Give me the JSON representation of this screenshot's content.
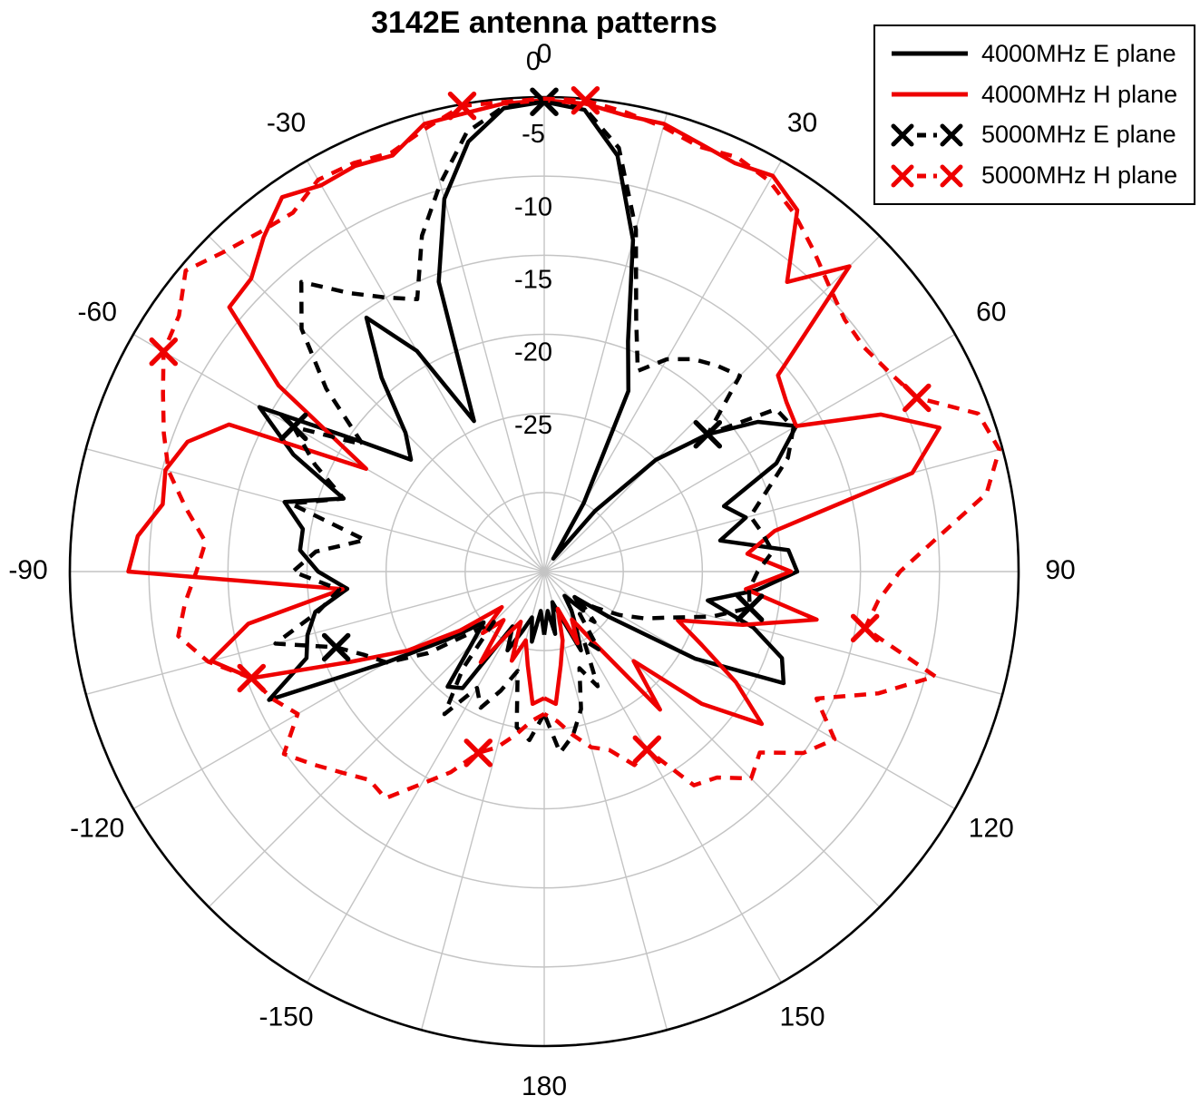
{
  "title": "3142E antenna patterns",
  "chart_data": {
    "type": "line",
    "subtype": "polar",
    "angle_unit": "degrees",
    "zero_location": "top",
    "direction": "clockwise",
    "angle_tick_labels": [
      0,
      30,
      60,
      90,
      120,
      150,
      180,
      -150,
      -120,
      -90,
      -60,
      -30
    ],
    "angle_grid_step_deg": 15,
    "radial_axis": {
      "min": -30,
      "max": 0,
      "ring_step": 5,
      "tick_labels": [
        "0",
        "-5",
        "-10",
        "-15",
        "-20",
        "-25"
      ],
      "grid": true
    },
    "legend_position": "top-right",
    "colors": {
      "grid": "#c4c4c4",
      "axis": "#000000",
      "black_series": "#000000",
      "red_series": "#ee0000"
    },
    "series": [
      {
        "name": "4000MHz E plane",
        "color": "#000000",
        "style": "solid",
        "marker": "none",
        "points": [
          [
            -180,
            -26
          ],
          [
            -175,
            -27.5
          ],
          [
            -170,
            -25.5
          ],
          [
            -165,
            -27
          ],
          [
            -160,
            -26
          ],
          [
            -155,
            -24.5
          ],
          [
            -150,
            -26
          ],
          [
            -145,
            -21
          ],
          [
            -140,
            -20.5
          ],
          [
            -135,
            -23.5
          ],
          [
            -130,
            -25
          ],
          [
            -125,
            -22.5
          ],
          [
            -120,
            -18.6
          ],
          [
            -115,
            -10.8
          ],
          [
            -110,
            -14
          ],
          [
            -105,
            -14.5
          ],
          [
            -100,
            -15.3
          ],
          [
            -95,
            -17.5
          ],
          [
            -90,
            -15.7
          ],
          [
            -85,
            -14.5
          ],
          [
            -80,
            -14.5
          ],
          [
            -75,
            -13
          ],
          [
            -70,
            -16.5
          ],
          [
            -65,
            -12.5
          ],
          [
            -60,
            -9.2
          ],
          [
            -55,
            -15.5
          ],
          [
            -50,
            -19
          ],
          [
            -45,
            -17.6
          ],
          [
            -40,
            -14
          ],
          [
            -35,
            -10.4
          ],
          [
            -30,
            -13.9
          ],
          [
            -25,
            -19.5
          ],
          [
            -20,
            -10.5
          ],
          [
            -15,
            -5.6
          ],
          [
            -10,
            -2.4
          ],
          [
            -5,
            -0.6
          ],
          [
            0,
            -0.3
          ],
          [
            5,
            -0.7
          ],
          [
            10,
            -3.3
          ],
          [
            15,
            -8.3
          ],
          [
            20,
            -14.5
          ],
          [
            25,
            -17.4
          ],
          [
            30,
            -25
          ],
          [
            35,
            -29
          ],
          [
            40,
            -25
          ],
          [
            45,
            -20
          ],
          [
            50,
            -16.5
          ],
          [
            55,
            -13.5
          ],
          [
            60,
            -11.6
          ],
          [
            65,
            -13.8
          ],
          [
            70,
            -17.9
          ],
          [
            75,
            -16.8
          ],
          [
            80,
            -18.7
          ],
          [
            85,
            -14.5
          ],
          [
            90,
            -14
          ],
          [
            95,
            -16.5
          ],
          [
            100,
            -19.5
          ],
          [
            105,
            -16.3
          ],
          [
            110,
            -14
          ],
          [
            115,
            -13.3
          ],
          [
            120,
            -19
          ],
          [
            125,
            -25
          ],
          [
            130,
            -27.5
          ],
          [
            135,
            -26.5
          ],
          [
            140,
            -28
          ],
          [
            145,
            -27
          ],
          [
            150,
            -26
          ],
          [
            155,
            -24.5
          ],
          [
            160,
            -27
          ],
          [
            165,
            -28
          ],
          [
            170,
            -26
          ],
          [
            175,
            -27.5
          ],
          [
            180,
            -26
          ]
        ],
        "marker_points": []
      },
      {
        "name": "4000MHz H plane",
        "color": "#ee0000",
        "style": "solid",
        "marker": "none",
        "points": [
          [
            -180,
            -22
          ],
          [
            -175,
            -21.6
          ],
          [
            -170,
            -24
          ],
          [
            -165,
            -25.5
          ],
          [
            -160,
            -24
          ],
          [
            -155,
            -26.5
          ],
          [
            -150,
            -25.5
          ],
          [
            -145,
            -23
          ],
          [
            -140,
            -26
          ],
          [
            -135,
            -24.5
          ],
          [
            -130,
            -26.5
          ],
          [
            -125,
            -23.5
          ],
          [
            -120,
            -20
          ],
          [
            -115,
            -16.5
          ],
          [
            -110,
            -10.3
          ],
          [
            -105,
            -8.2
          ],
          [
            -100,
            -11
          ],
          [
            -95,
            -17.2
          ],
          [
            -90,
            -3.7
          ],
          [
            -85,
            -4.2
          ],
          [
            -80,
            -5.5
          ],
          [
            -75,
            -5.2
          ],
          [
            -70,
            -6
          ],
          [
            -65,
            -8
          ],
          [
            -60,
            -17
          ],
          [
            -55,
            -9.5
          ],
          [
            -50,
            -4
          ],
          [
            -45,
            -3.8
          ],
          [
            -40,
            -2.4
          ],
          [
            -35,
            -1.1
          ],
          [
            -30,
            -1.8
          ],
          [
            -25,
            -1.7
          ],
          [
            -20,
            -2
          ],
          [
            -15,
            -0.7
          ],
          [
            -10,
            -0.6
          ],
          [
            -5,
            -0.3
          ],
          [
            0,
            -0.2
          ],
          [
            5,
            -0.3
          ],
          [
            10,
            -0.7
          ],
          [
            15,
            -0.7
          ],
          [
            20,
            -1.2
          ],
          [
            25,
            -1.5
          ],
          [
            30,
            -1.1
          ],
          [
            35,
            -2.1
          ],
          [
            40,
            -6.1
          ],
          [
            45,
            -2.7
          ],
          [
            50,
            -10.7
          ],
          [
            55,
            -11.3
          ],
          [
            60,
            -11.6
          ],
          [
            65,
            -6.5
          ],
          [
            70,
            -3.4
          ],
          [
            75,
            -5.9
          ],
          [
            80,
            -15.2
          ],
          [
            85,
            -17.1
          ],
          [
            90,
            -14.4
          ],
          [
            95,
            -17.2
          ],
          [
            100,
            -12.5
          ],
          [
            105,
            -17
          ],
          [
            110,
            -21
          ],
          [
            115,
            -19
          ],
          [
            120,
            -16
          ],
          [
            125,
            -13.2
          ],
          [
            130,
            -17
          ],
          [
            135,
            -22
          ],
          [
            140,
            -18.6
          ],
          [
            145,
            -24.5
          ],
          [
            150,
            -26.5
          ],
          [
            155,
            -25
          ],
          [
            160,
            -27.5
          ],
          [
            165,
            -25.5
          ],
          [
            170,
            -24
          ],
          [
            175,
            -21.6
          ],
          [
            180,
            -22
          ]
        ],
        "marker_points": []
      },
      {
        "name": "5000MHz E plane",
        "color": "#000000",
        "style": "dashed",
        "marker": "x",
        "points": [
          [
            -180,
            -21
          ],
          [
            -175,
            -19.3
          ],
          [
            -170,
            -20
          ],
          [
            -165,
            -23.5
          ],
          [
            -160,
            -22
          ],
          [
            -155,
            -20.5
          ],
          [
            -150,
            -21.5
          ],
          [
            -145,
            -19
          ],
          [
            -140,
            -22
          ],
          [
            -135,
            -25.5
          ],
          [
            -130,
            -24
          ],
          [
            -125,
            -21
          ],
          [
            -120,
            -18.5
          ],
          [
            -115,
            -17.5
          ],
          [
            -110,
            -16
          ],
          [
            -105,
            -12.4
          ],
          [
            -100,
            -15.5
          ],
          [
            -95,
            -17
          ],
          [
            -90,
            -14.1
          ],
          [
            -85,
            -15.5
          ],
          [
            -80,
            -18.5
          ],
          [
            -75,
            -13.4
          ],
          [
            -70,
            -16.5
          ],
          [
            -65,
            -14
          ],
          [
            -60,
            -11.7
          ],
          [
            -55,
            -16
          ],
          [
            -50,
            -12
          ],
          [
            -45,
            -8.3
          ],
          [
            -40,
            -6.1
          ],
          [
            -35,
            -8.5
          ],
          [
            -30,
            -10
          ],
          [
            -25,
            -11
          ],
          [
            -20,
            -7.4
          ],
          [
            -15,
            -4.6
          ],
          [
            -10,
            -1.8
          ],
          [
            -5,
            -0.5
          ],
          [
            0,
            -0.3
          ],
          [
            5,
            -0.6
          ],
          [
            10,
            -2.8
          ],
          [
            15,
            -7.6
          ],
          [
            20,
            -13
          ],
          [
            25,
            -16
          ],
          [
            30,
            -14.5
          ],
          [
            35,
            -13.6
          ],
          [
            40,
            -13
          ],
          [
            45,
            -12.5
          ],
          [
            50,
            -16.5
          ],
          [
            55,
            -12.1
          ],
          [
            60,
            -11.8
          ],
          [
            65,
            -13
          ],
          [
            70,
            -15
          ],
          [
            75,
            -16.5
          ],
          [
            80,
            -16
          ],
          [
            85,
            -15.5
          ],
          [
            90,
            -16.5
          ],
          [
            95,
            -17
          ],
          [
            100,
            -16.8
          ],
          [
            105,
            -19
          ],
          [
            110,
            -21.5
          ],
          [
            115,
            -23
          ],
          [
            120,
            -24.5
          ],
          [
            125,
            -26
          ],
          [
            130,
            -27
          ],
          [
            135,
            -25.5
          ],
          [
            140,
            -26.5
          ],
          [
            145,
            -24
          ],
          [
            150,
            -25
          ],
          [
            155,
            -22
          ],
          [
            160,
            -23.5
          ],
          [
            165,
            -21
          ],
          [
            170,
            -19.5
          ],
          [
            175,
            -18.5
          ],
          [
            180,
            -21
          ]
        ],
        "marker_points": [
          [
            0,
            -0.3
          ],
          [
            50,
            -16.5
          ],
          [
            100,
            -16.8
          ],
          [
            -60,
            -11.7
          ],
          [
            -110,
            -16
          ]
        ]
      },
      {
        "name": "5000MHz H plane",
        "color": "#ee0000",
        "style": "dashed",
        "marker": "x",
        "points": [
          [
            -180,
            -21
          ],
          [
            -175,
            -20.5
          ],
          [
            -170,
            -19.5
          ],
          [
            -165,
            -18.5
          ],
          [
            -160,
            -17.8
          ],
          [
            -155,
            -16
          ],
          [
            -150,
            -14.5
          ],
          [
            -145,
            -12.5
          ],
          [
            -140,
            -12.8
          ],
          [
            -135,
            -12
          ],
          [
            -130,
            -11
          ],
          [
            -125,
            -9.9
          ],
          [
            -120,
            -12
          ],
          [
            -115,
            -11
          ],
          [
            -110,
            -10.3
          ],
          [
            -105,
            -8
          ],
          [
            -100,
            -6.5
          ],
          [
            -95,
            -7.2
          ],
          [
            -90,
            -8
          ],
          [
            -85,
            -8.5
          ],
          [
            -80,
            -7
          ],
          [
            -75,
            -5.4
          ],
          [
            -70,
            -4.4
          ],
          [
            -65,
            -3.4
          ],
          [
            -60,
            -2.2
          ],
          [
            -55,
            -1.8
          ],
          [
            -50,
            -0.4
          ],
          [
            -45,
            -1.4
          ],
          [
            -40,
            -2
          ],
          [
            -35,
            -2.3
          ],
          [
            -30,
            -1.4
          ],
          [
            -25,
            -1.5
          ],
          [
            -20,
            -1.8
          ],
          [
            -15,
            -1
          ],
          [
            -10,
            -0.1
          ],
          [
            -5,
            -0.2
          ],
          [
            0,
            -0.1
          ],
          [
            5,
            -0.1
          ],
          [
            10,
            -0.5
          ],
          [
            15,
            -0.9
          ],
          [
            20,
            -1.4
          ],
          [
            25,
            -1.1
          ],
          [
            30,
            -1.5
          ],
          [
            35,
            -2.4
          ],
          [
            40,
            -3.5
          ],
          [
            45,
            -4.5
          ],
          [
            50,
            -5.2
          ],
          [
            55,
            -5.3
          ],
          [
            60,
            -4.8
          ],
          [
            65,
            -4
          ],
          [
            70,
            -0.8
          ],
          [
            75,
            -0.2
          ],
          [
            80,
            -1.6
          ],
          [
            85,
            -5
          ],
          [
            90,
            -7.5
          ],
          [
            95,
            -8.8
          ],
          [
            100,
            -9.4
          ],
          [
            105,
            -4.4
          ],
          [
            110,
            -7.5
          ],
          [
            115,
            -11
          ],
          [
            120,
            -8.8
          ],
          [
            125,
            -10
          ],
          [
            130,
            -12.2
          ],
          [
            135,
            -11.5
          ],
          [
            140,
            -13
          ],
          [
            145,
            -13.5
          ],
          [
            150,
            -17
          ],
          [
            155,
            -16.5
          ],
          [
            160,
            -18
          ],
          [
            165,
            -18.5
          ],
          [
            170,
            -19.5
          ],
          [
            175,
            -20.5
          ],
          [
            180,
            -21
          ]
        ],
        "marker_points": [
          [
            5,
            -0.1
          ],
          [
            -10,
            -0.1
          ],
          [
            65,
            -4
          ],
          [
            100,
            -9.4
          ],
          [
            150,
            -17
          ],
          [
            -60,
            -2.2
          ],
          [
            -110,
            -10.3
          ],
          [
            -160,
            -17.8
          ]
        ]
      }
    ]
  }
}
